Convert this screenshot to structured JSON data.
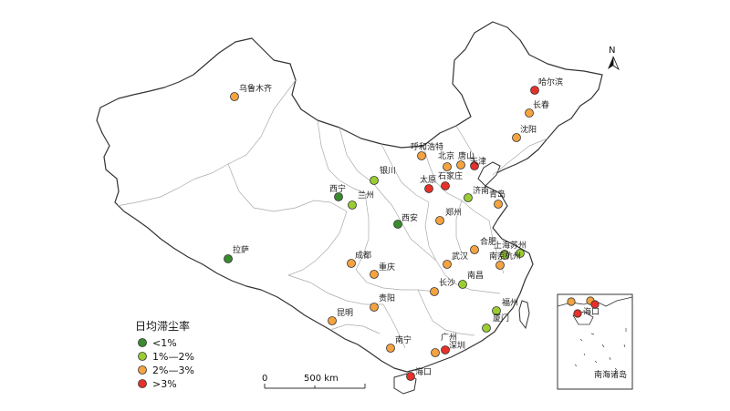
{
  "legend": {
    "title": "日均滞尘率",
    "classes": [
      {
        "label": "<1%",
        "color": "#3a8a2e"
      },
      {
        "label": "1%—2%",
        "color": "#9acd32"
      },
      {
        "label": "2%—3%",
        "color": "#f4a340"
      },
      {
        "label": ">3%",
        "color": "#e8302a"
      }
    ]
  },
  "north_arrow": {
    "label": "N"
  },
  "scale_bar": {
    "zero_label": "0",
    "distance_label": "500 km"
  },
  "inset": {
    "label": "南海诸岛"
  },
  "cities": [
    {
      "name": "乌鲁木齐",
      "class": 2
    },
    {
      "name": "哈尔滨",
      "class": 3
    },
    {
      "name": "长春",
      "class": 2
    },
    {
      "name": "沈阳",
      "class": 2
    },
    {
      "name": "呼和浩特",
      "class": 2
    },
    {
      "name": "北京",
      "class": 2
    },
    {
      "name": "唐山",
      "class": 2
    },
    {
      "name": "天津",
      "class": 3
    },
    {
      "name": "银川",
      "class": 1
    },
    {
      "name": "太原",
      "class": 3
    },
    {
      "name": "石家庄",
      "class": 3
    },
    {
      "name": "西宁",
      "class": 0
    },
    {
      "name": "兰州",
      "class": 1
    },
    {
      "name": "济南",
      "class": 1
    },
    {
      "name": "青岛",
      "class": 2
    },
    {
      "name": "西安",
      "class": 0
    },
    {
      "name": "郑州",
      "class": 2
    },
    {
      "name": "拉萨",
      "class": 0
    },
    {
      "name": "成都",
      "class": 2
    },
    {
      "name": "合肥",
      "class": 2
    },
    {
      "name": "上海",
      "class": 1
    },
    {
      "name": "苏州",
      "class": 1
    },
    {
      "name": "南京",
      "class": 1
    },
    {
      "name": "杭州",
      "class": 2
    },
    {
      "name": "武汉",
      "class": 2
    },
    {
      "name": "重庆",
      "class": 2
    },
    {
      "name": "南昌",
      "class": 1
    },
    {
      "name": "长沙",
      "class": 2
    },
    {
      "name": "贵阳",
      "class": 2
    },
    {
      "name": "福州",
      "class": 1
    },
    {
      "name": "厦门",
      "class": 1
    },
    {
      "name": "昆明",
      "class": 2
    },
    {
      "name": "南宁",
      "class": 2
    },
    {
      "name": "广州",
      "class": 2
    },
    {
      "name": "深圳",
      "class": 3
    },
    {
      "name": "海口",
      "class": 3
    }
  ],
  "inset_city": {
    "name": "海口",
    "class": 3
  }
}
